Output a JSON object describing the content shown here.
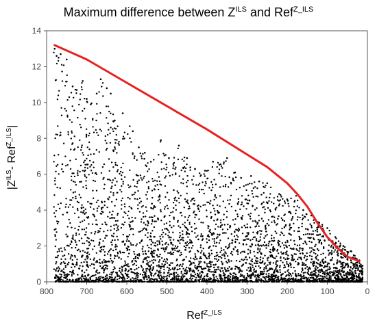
{
  "chart_data": {
    "type": "scatter",
    "title": {
      "base1": "Maximum difference between Z",
      "sup1": "ILS",
      "base2": " and Ref",
      "sup2": "Z_ILS"
    },
    "xlabel": {
      "base": "Ref",
      "sup": "Z_ILS"
    },
    "ylabel": {
      "open": "|Z",
      "sup1": "ILS",
      "mid": "- Ref",
      "sup2": "Z_ILS",
      "close": "|"
    },
    "xlim": [
      800,
      0
    ],
    "ylim": [
      0,
      14
    ],
    "x_reversed": true,
    "xticks": [
      800,
      700,
      600,
      500,
      400,
      300,
      200,
      100,
      0
    ],
    "yticks": [
      0,
      2,
      4,
      6,
      8,
      10,
      12,
      14
    ],
    "series": [
      {
        "kind": "scatter",
        "color": "#000000",
        "points": [
          [
            780,
            13.0
          ],
          [
            775,
            12.6
          ],
          [
            770,
            12.5
          ],
          [
            765,
            12.7
          ],
          [
            750,
            12.4
          ],
          [
            735,
            10.9
          ],
          [
            725,
            10.7
          ],
          [
            710,
            11.2
          ],
          [
            700,
            10.2
          ],
          [
            690,
            9.9
          ],
          [
            675,
            10.5
          ],
          [
            665,
            11.3
          ],
          [
            650,
            10.8
          ],
          [
            640,
            10.5
          ],
          [
            630,
            9.0
          ],
          [
            610,
            9.4
          ],
          [
            585,
            8.4
          ],
          [
            570,
            7.5
          ],
          [
            555,
            7.2
          ],
          [
            540,
            6.7
          ],
          [
            515,
            7.9
          ],
          [
            495,
            6.9
          ],
          [
            470,
            7.6
          ],
          [
            450,
            6.9
          ],
          [
            430,
            6.3
          ],
          [
            405,
            6.2
          ],
          [
            385,
            6.7
          ],
          [
            350,
            6.9
          ],
          [
            330,
            6.1
          ],
          [
            315,
            5.8
          ],
          [
            290,
            5.9
          ],
          [
            270,
            5.6
          ],
          [
            250,
            5.5
          ],
          [
            220,
            4.9
          ],
          [
            200,
            4.6
          ],
          [
            180,
            5.0
          ],
          [
            160,
            4.0
          ],
          [
            140,
            3.7
          ],
          [
            120,
            3.3
          ],
          [
            100,
            3.0
          ],
          [
            80,
            2.5
          ],
          [
            60,
            2.0
          ],
          [
            40,
            1.7
          ],
          [
            20,
            1.2
          ],
          [
            12,
            0.9
          ]
        ]
      },
      {
        "kind": "envelope-line",
        "color": "#e82020",
        "points": [
          [
            780,
            13.2
          ],
          [
            700,
            12.4
          ],
          [
            600,
            11.1
          ],
          [
            500,
            9.8
          ],
          [
            400,
            8.5
          ],
          [
            300,
            7.1
          ],
          [
            250,
            6.4
          ],
          [
            200,
            5.5
          ],
          [
            175,
            4.9
          ],
          [
            150,
            4.2
          ],
          [
            125,
            3.3
          ],
          [
            100,
            2.5
          ],
          [
            75,
            1.9
          ],
          [
            50,
            1.4
          ],
          [
            20,
            1.15
          ]
        ]
      }
    ]
  }
}
